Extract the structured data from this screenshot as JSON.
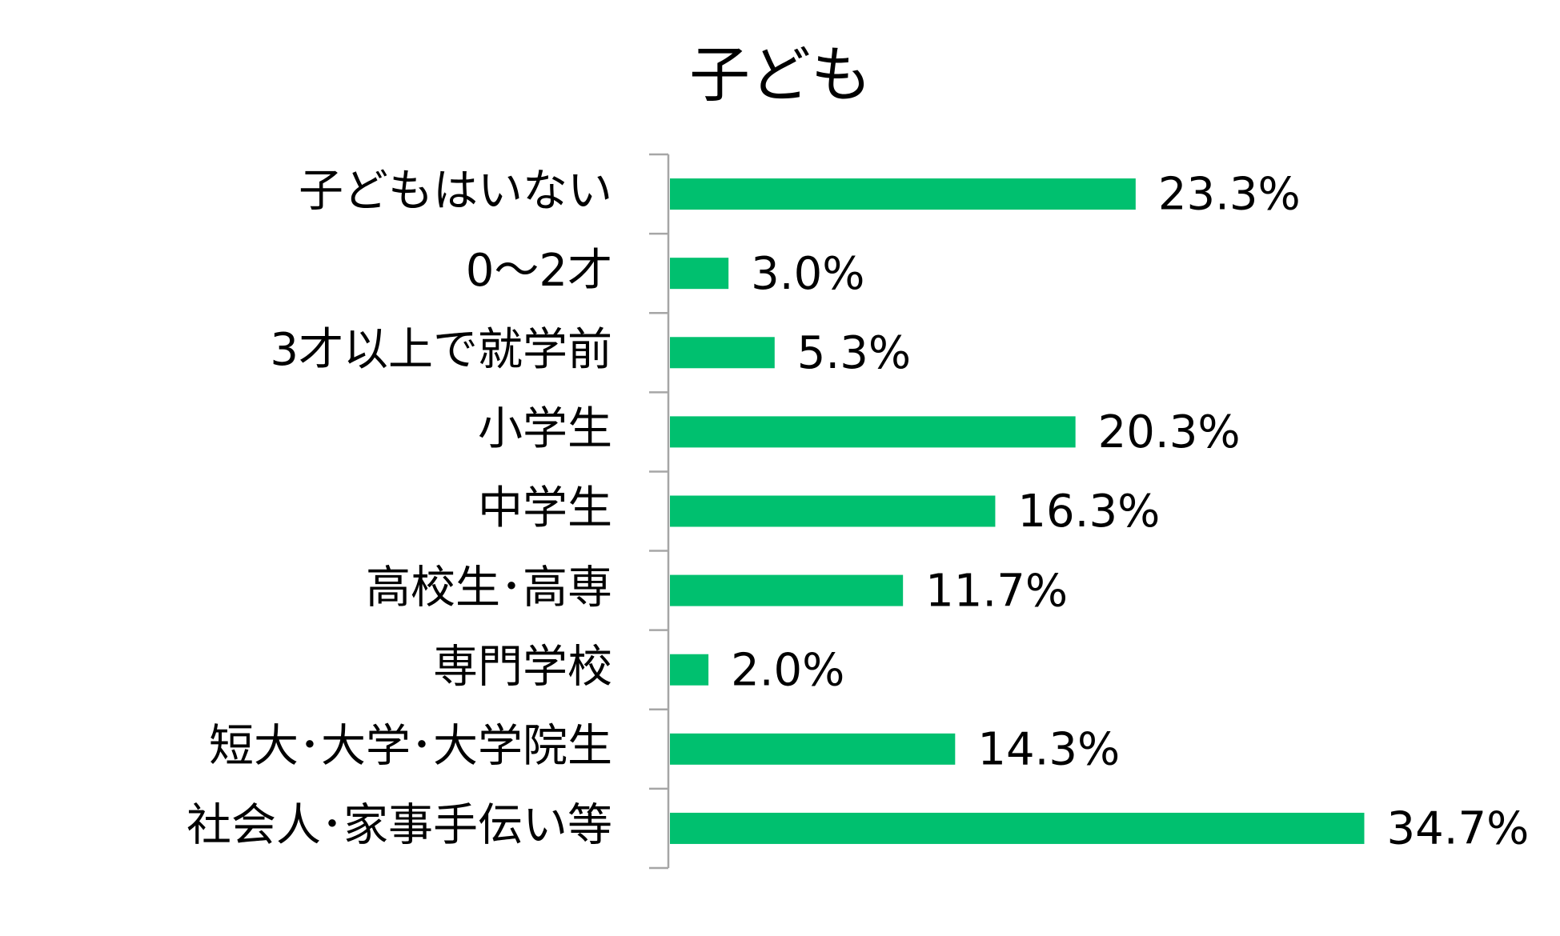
{
  "chart_data": {
    "type": "bar",
    "orientation": "horizontal",
    "title": "子ども",
    "categories": [
      "子どもはいない",
      "0～2才",
      "3才以上で就学前",
      "小学生",
      "中学生",
      "高校生･高専",
      "専門学校",
      "短大･大学･大学院生",
      "社会人･家事手伝い等"
    ],
    "values": [
      23.3,
      3.0,
      5.3,
      20.3,
      16.3,
      11.7,
      2.0,
      14.3,
      34.7
    ],
    "value_labels": [
      "23.3%",
      "3.0%",
      "5.3%",
      "20.3%",
      "16.3%",
      "11.7%",
      "2.0%",
      "14.3%",
      "34.7%"
    ],
    "unit": "%",
    "xlim": [
      0,
      35
    ],
    "grid": false,
    "legend": "none",
    "bar_color": "#00c06f",
    "axis_color": "#a6a6a6"
  }
}
